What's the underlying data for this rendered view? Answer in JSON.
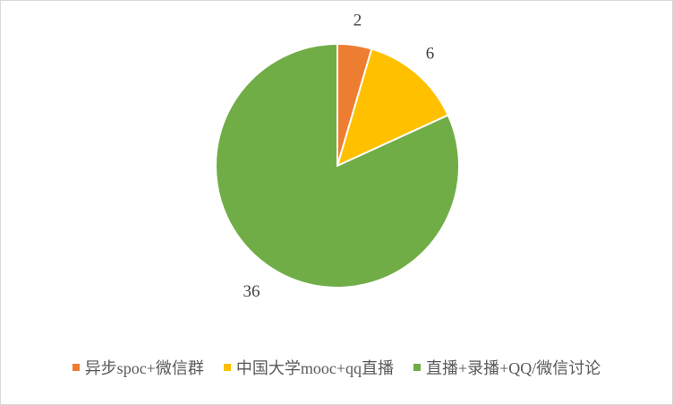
{
  "chart_data": {
    "type": "pie",
    "categories": [
      "异步spoc+微信群",
      "中国大学mooc+qq直播",
      "直播+录播+QQ/微信讨论"
    ],
    "values": [
      2,
      6,
      36
    ],
    "data_labels": [
      "2",
      "6",
      "36"
    ],
    "colors": [
      "#ED7D31",
      "#FFC000",
      "#70AD47"
    ],
    "start_angle": "top, clockwise",
    "legend": "bottom"
  }
}
